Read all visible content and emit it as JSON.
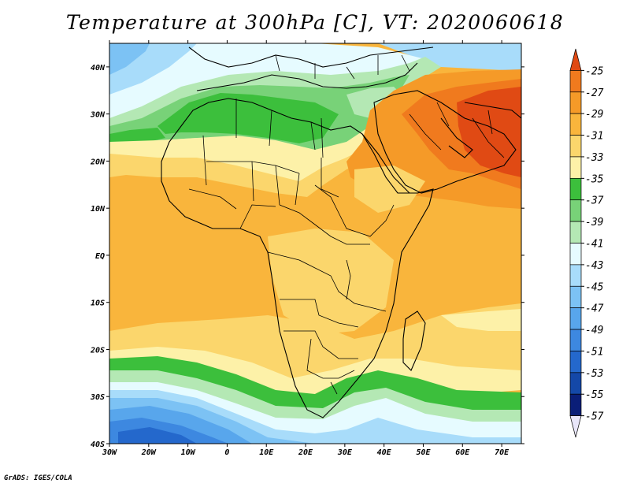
{
  "title": "Temperature at 300hPa [C], VT: 2020060618",
  "credit": "GrADS: IGES/COLA",
  "map": {
    "lon_range": [
      -30,
      75
    ],
    "lat_range": [
      -40,
      45
    ],
    "lon_ticks": [
      "30W",
      "20W",
      "10W",
      "0",
      "10E",
      "20E",
      "30E",
      "40E",
      "50E",
      "60E",
      "70E"
    ],
    "lat_ticks": [
      "40S",
      "30S",
      "20S",
      "10S",
      "EQ",
      "10N",
      "20N",
      "30N",
      "40N"
    ]
  },
  "colorbar": {
    "labels": [
      "-25",
      "-27",
      "-29",
      "-31",
      "-33",
      "-35",
      "-37",
      "-39",
      "-41",
      "-43",
      "-45",
      "-47",
      "-49",
      "-51",
      "-53",
      "-55",
      "-57"
    ],
    "colors": [
      "#e04a14",
      "#f07a1e",
      "#f59a28",
      "#f9b53c",
      "#fbd66c",
      "#fdf1a8",
      "#3cbf3c",
      "#78d278",
      "#b4e8b4",
      "#e6fbff",
      "#a8dcfa",
      "#7cc2f4",
      "#58a6ec",
      "#3d88e0",
      "#2468cc",
      "#1448a8",
      "#0a1e78",
      "#e8e6fa"
    ]
  }
}
